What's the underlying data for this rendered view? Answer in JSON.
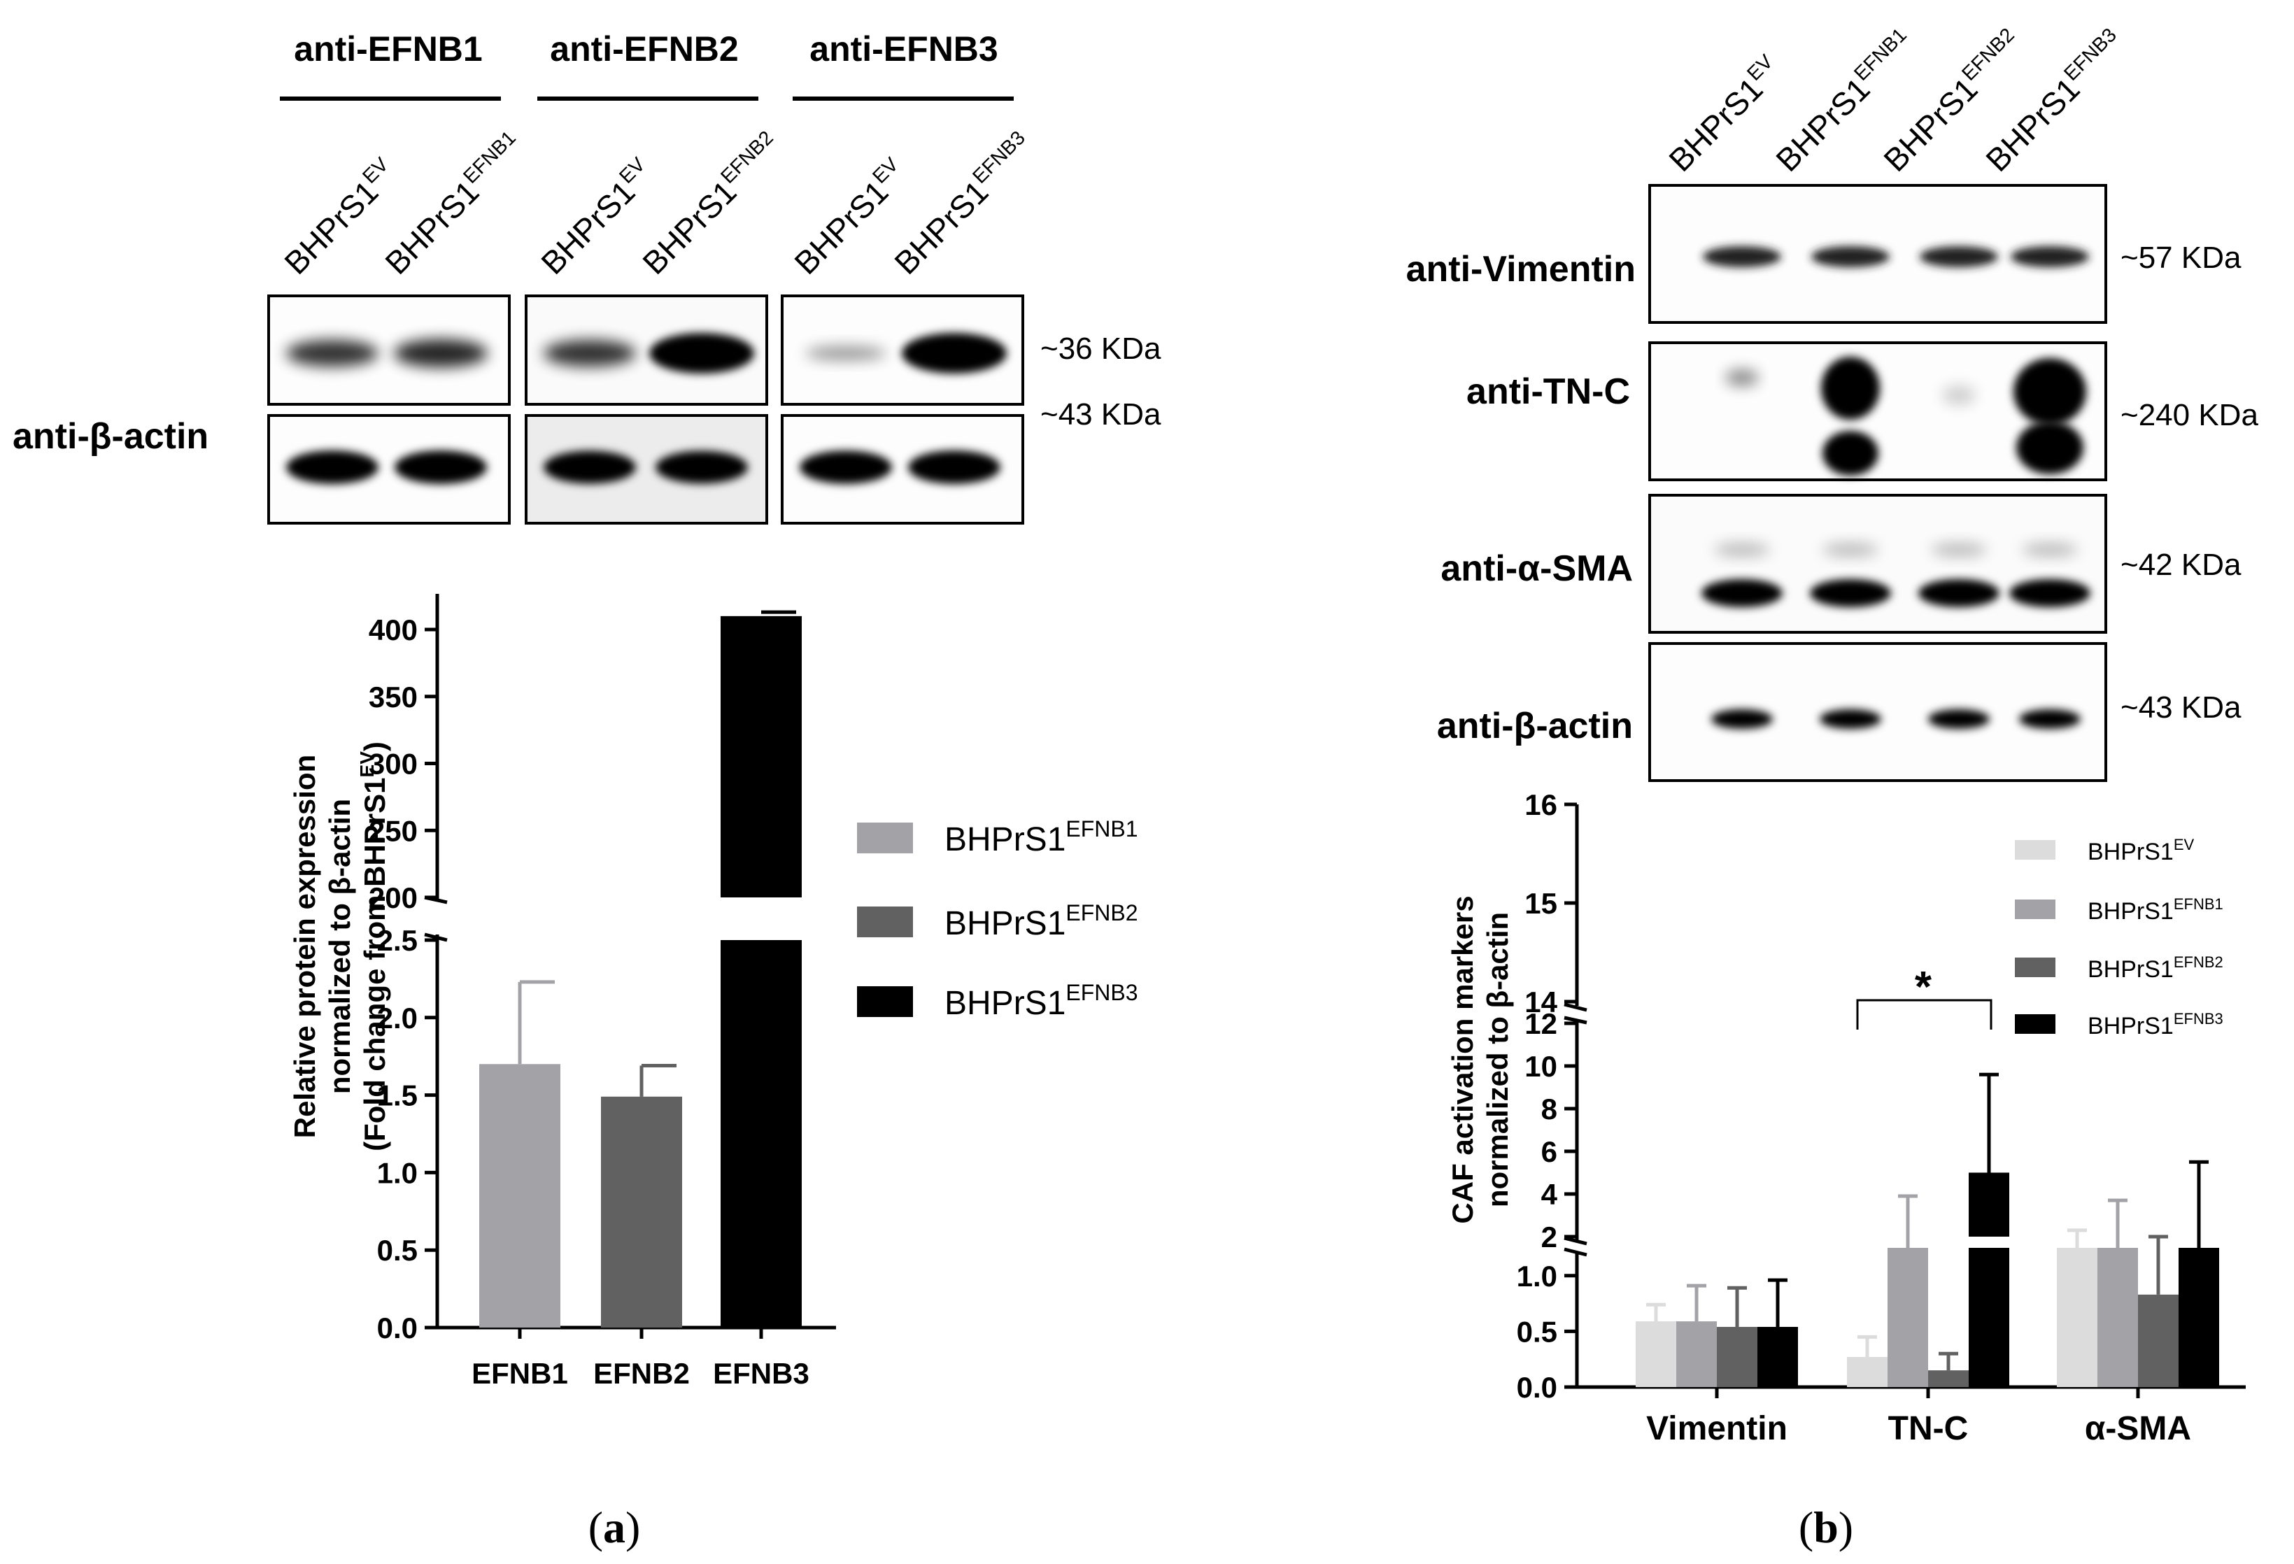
{
  "panel_a": {
    "group_headers": [
      "anti-EFNB1",
      "anti-EFNB2",
      "anti-EFNB3"
    ],
    "lanes": [
      {
        "base": "BHPrS1",
        "sup": "EV"
      },
      {
        "base": "BHPrS1",
        "sup": "EFNB1"
      },
      {
        "base": "BHPrS1",
        "sup": "EV"
      },
      {
        "base": "BHPrS1",
        "sup": "EFNB2"
      },
      {
        "base": "BHPrS1",
        "sup": "EV"
      },
      {
        "base": "BHPrS1",
        "sup": "EFNB3"
      }
    ],
    "row_labels": [
      "anti-β-actin"
    ],
    "kda_labels": [
      "~36 KDa",
      "~43 KDa"
    ],
    "bands_top": [
      0.55,
      0.6,
      0.55,
      1.0,
      0.15,
      1.0
    ],
    "bands_actin": [
      1.0,
      1.0,
      0.9,
      0.85,
      0.95,
      1.0
    ],
    "caption": {
      "open": "(",
      "letter": "a",
      "close": ")"
    }
  },
  "panel_b": {
    "lanes": [
      {
        "base": "BHPrS1",
        "sup": "EV"
      },
      {
        "base": "BHPrS1",
        "sup": "EFNB1"
      },
      {
        "base": "BHPrS1",
        "sup": "EFNB2"
      },
      {
        "base": "BHPrS1",
        "sup": "EFNB3"
      }
    ],
    "row_labels": [
      "anti-Vimentin",
      "anti-TN-C",
      "anti-α-SMA",
      "anti-β-actin"
    ],
    "kda_labels": [
      "~57 KDa",
      "~240 KDa",
      "~42 KDa",
      "~43 KDa"
    ],
    "caption": {
      "open": "(",
      "letter": "b",
      "close": ")"
    }
  },
  "chart_data": [
    {
      "type": "bar",
      "categories": [
        "EFNB1",
        "EFNB2",
        "EFNB3"
      ],
      "values": [
        1.7,
        1.49,
        410
      ],
      "errors": [
        0.53,
        0.2,
        3
      ],
      "colors": [
        "#a3a3a7",
        "#616161",
        "#000000"
      ],
      "ylabel_lines": [
        "Relative protein expression",
        "normalized to β-actin",
        "(Fold change from BHPrS1"
      ],
      "ylabel_sup": "EV",
      "ylabel_close": ")",
      "y_segments": [
        {
          "range": [
            0,
            2.5
          ],
          "ticks": [
            "0.0",
            "0.5",
            "1.0",
            "1.5",
            "2.0",
            "2.5"
          ]
        },
        {
          "range": [
            200,
            400
          ],
          "ticks": [
            "200",
            "250",
            "300",
            "350",
            "400"
          ]
        }
      ],
      "legend": [
        {
          "base": "BHPrS1",
          "sup": "EFNB1",
          "color": "#a3a3a7"
        },
        {
          "base": "BHPrS1",
          "sup": "EFNB2",
          "color": "#616161"
        },
        {
          "base": "BHPrS1",
          "sup": "EFNB3",
          "color": "#000000"
        }
      ]
    },
    {
      "type": "bar",
      "categories": [
        "Vimentin",
        "TN-C",
        "α-SMA"
      ],
      "series": [
        {
          "name": "BHPrS1 EV",
          "color": "#dcdcdc",
          "values": [
            0.59,
            0.27,
            1.4
          ],
          "errors": [
            0.15,
            0.18,
            0.9
          ]
        },
        {
          "name": "BHPrS1 EFNB1",
          "color": "#a3a3a7",
          "values": [
            0.59,
            1.5,
            1.5
          ],
          "errors": [
            0.32,
            2.4,
            2.2
          ]
        },
        {
          "name": "BHPrS1 EFNB2",
          "color": "#616161",
          "values": [
            0.54,
            0.15,
            0.83
          ],
          "errors": [
            0.35,
            0.15,
            0.53
          ]
        },
        {
          "name": "BHPrS1 EFNB3",
          "color": "#000000",
          "values": [
            0.54,
            5,
            1.5
          ],
          "errors": [
            0.42,
            4.6,
            4
          ]
        }
      ],
      "ylabel_lines": [
        "CAF activation markers",
        "normalized to β-actin"
      ],
      "y_segments": [
        {
          "range": [
            0,
            1.25
          ],
          "ticks": [
            "0.0",
            "0.5",
            "1.0"
          ]
        },
        {
          "range": [
            2,
            12
          ],
          "ticks": [
            "2",
            "4",
            "6",
            "8",
            "10",
            "12"
          ]
        },
        {
          "range": [
            14,
            16
          ],
          "ticks": [
            "14",
            "15",
            "16"
          ]
        }
      ],
      "annotation": "*",
      "legend": [
        {
          "base": "BHPrS1",
          "sup": "EV",
          "color": "#dcdcdc"
        },
        {
          "base": "BHPrS1",
          "sup": "EFNB1",
          "color": "#a3a3a7"
        },
        {
          "base": "BHPrS1",
          "sup": "EFNB2",
          "color": "#616161"
        },
        {
          "base": "BHPrS1",
          "sup": "EFNB3",
          "color": "#000000"
        }
      ]
    }
  ]
}
